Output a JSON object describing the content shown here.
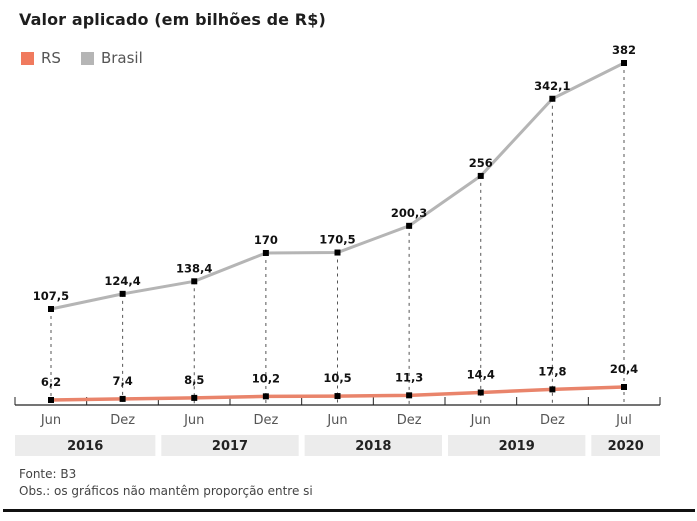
{
  "header": {
    "title": "Valor aplicado (em bilhões de R$)"
  },
  "legend": [
    {
      "name": "RS",
      "color": "#f07a5e"
    },
    {
      "name": "Brasil",
      "color": "#b5b5b5"
    }
  ],
  "footer": {
    "source": "Fonte: B3",
    "note": "Obs.: os gráficos não mantêm proporção entre si"
  },
  "chart_data": {
    "type": "line",
    "title": "Valor aplicado (em bilhões de R$)",
    "xlabel": "",
    "ylabel": "",
    "x": [
      "Jun 2016",
      "Dez 2016",
      "Jun 2017",
      "Dez 2017",
      "Jun 2018",
      "Dez 2018",
      "Jun 2019",
      "Dez 2019",
      "Jul 2020"
    ],
    "tick_labels": [
      "Jun",
      "Dez",
      "Jun",
      "Dez",
      "Jun",
      "Dez",
      "Jun",
      "Dez",
      "Jul"
    ],
    "year_groups": [
      {
        "label": "2016",
        "span": [
          0,
          1
        ]
      },
      {
        "label": "2017",
        "span": [
          2,
          3
        ]
      },
      {
        "label": "2018",
        "span": [
          4,
          5
        ]
      },
      {
        "label": "2019",
        "span": [
          6,
          7
        ]
      },
      {
        "label": "2020",
        "span": [
          8,
          8
        ]
      }
    ],
    "series": [
      {
        "name": "Brasil",
        "color": "#b5b5b5",
        "values": [
          107.5,
          124.4,
          138.4,
          170,
          170.5,
          200.3,
          256,
          342.1,
          382
        ],
        "labels": [
          "107,5",
          "124,4",
          "138,4",
          "170",
          "170,5",
          "200,3",
          "256",
          "342,1",
          "382"
        ]
      },
      {
        "name": "RS",
        "color": "#e9846b",
        "values": [
          6.2,
          7.4,
          8.5,
          10.2,
          10.5,
          11.3,
          14.4,
          17.8,
          20.4
        ],
        "labels": [
          "6,2",
          "7,4",
          "8,5",
          "10,2",
          "10,5",
          "11,3",
          "14,4",
          "17,8",
          "20,4"
        ]
      }
    ],
    "grid": false,
    "legend_position": "top-left",
    "note": "series use independent vertical scales"
  }
}
